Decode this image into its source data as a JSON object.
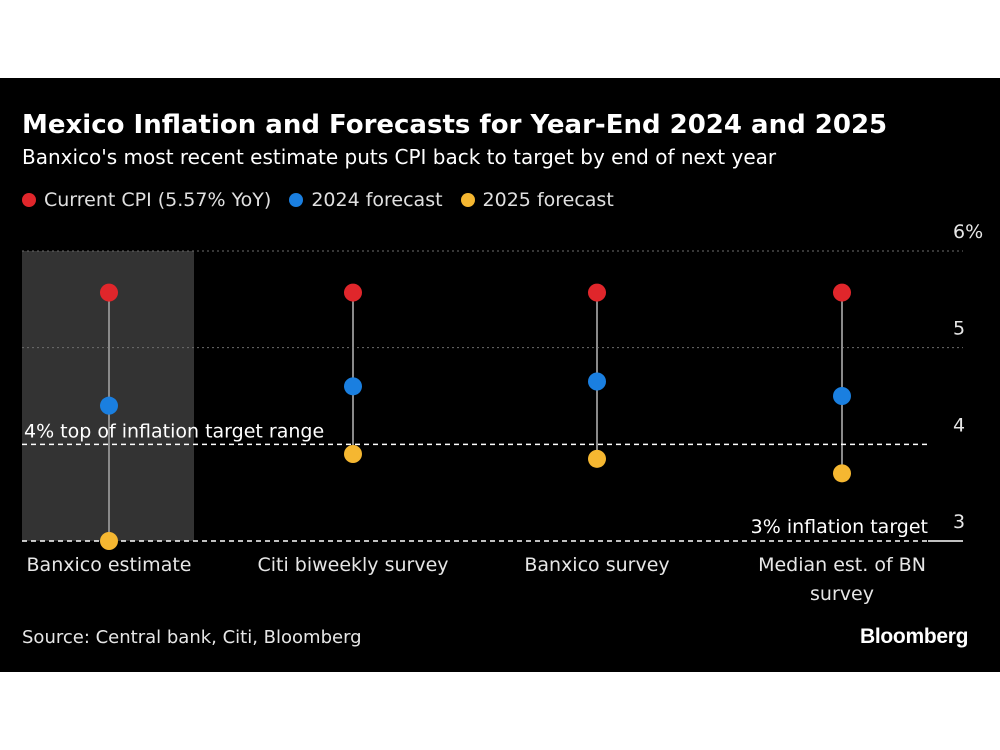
{
  "header": {
    "title": "Mexico Inflation and Forecasts for Year-End 2024 and 2025",
    "subtitle": "Banxico's most recent estimate puts CPI back to target by end of next year"
  },
  "footer": {
    "source": "Source: Central bank, Citi, Bloomberg",
    "brand": "Bloomberg"
  },
  "colors": {
    "background": "#000000",
    "current": "#e0262b",
    "forecast_2024": "#1a7fe0",
    "forecast_2025": "#f5b731",
    "highlight": "#333333"
  },
  "chart_data": {
    "type": "scatter",
    "categories": [
      "Banxico estimate",
      "Citi biweekly survey",
      "Banxico survey",
      "Median est. of BN survey"
    ],
    "highlighted_category": "Banxico estimate",
    "series": [
      {
        "name": "Current CPI (5.57% YoY)",
        "values": [
          5.57,
          5.57,
          5.57,
          5.57
        ]
      },
      {
        "name": "2024 forecast",
        "values": [
          4.4,
          4.6,
          4.65,
          4.5
        ]
      },
      {
        "name": "2025 forecast",
        "values": [
          3.0,
          3.9,
          3.85,
          3.7
        ]
      }
    ],
    "ylim": [
      3,
      6
    ],
    "yticks": [
      {
        "value": 3,
        "label": "3"
      },
      {
        "value": 4,
        "label": "4"
      },
      {
        "value": 5,
        "label": "5"
      },
      {
        "value": 6,
        "label": "6%"
      }
    ],
    "annotations": [
      {
        "value": 4,
        "label": "4% top of inflation target range"
      },
      {
        "value": 3,
        "label": "3% inflation target"
      }
    ],
    "grid": true,
    "legend_position": "top-left"
  }
}
